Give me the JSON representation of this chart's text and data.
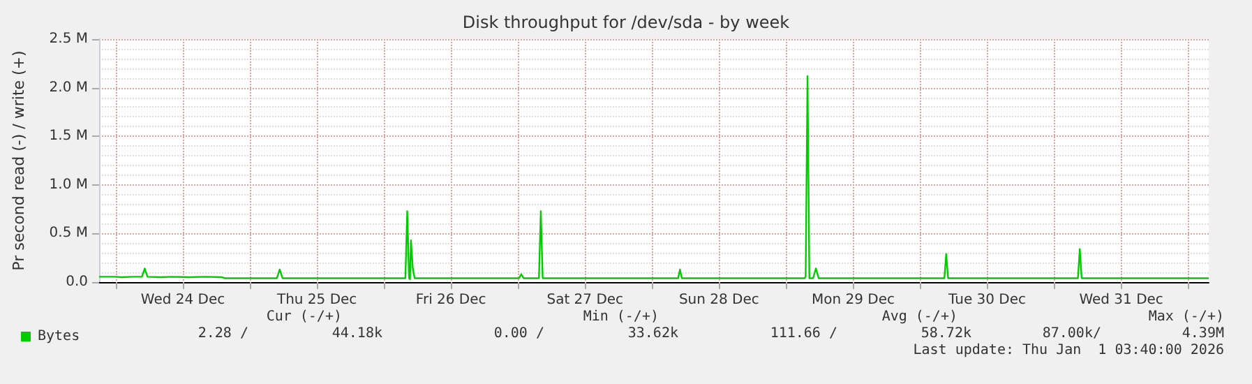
{
  "chart_data": {
    "type": "line",
    "title": "Disk throughput for /dev/sda - by week",
    "ylabel": "Pr second read (-) / write (+)",
    "x": [
      "2025-12-23T21:00",
      "2025-12-24T00:00",
      "2025-12-24T01:00",
      "2025-12-24T03:00",
      "2025-12-24T04:40",
      "2025-12-24T05:10",
      "2025-12-24T05:40",
      "2025-12-24T08:00",
      "2025-12-24T10:00",
      "2025-12-24T13:00",
      "2025-12-24T16:00",
      "2025-12-24T19:00",
      "2025-12-24T19:30",
      "2025-12-25T04:50",
      "2025-12-25T05:20",
      "2025-12-25T05:50",
      "2025-12-26T03:50",
      "2025-12-26T04:10",
      "2025-12-26T04:30",
      "2025-12-26T04:40",
      "2025-12-26T04:50",
      "2025-12-26T05:10",
      "2025-12-26T05:30",
      "2025-12-26T06:00",
      "2025-12-26T06:30",
      "2025-12-27T00:10",
      "2025-12-27T00:35",
      "2025-12-27T01:00",
      "2025-12-27T03:45",
      "2025-12-27T04:05",
      "2025-12-27T04:25",
      "2025-12-28T04:40",
      "2025-12-28T05:00",
      "2025-12-28T05:20",
      "2025-12-29T03:20",
      "2025-12-29T03:30",
      "2025-12-29T03:50",
      "2025-12-29T04:10",
      "2025-12-29T04:50",
      "2025-12-29T05:20",
      "2025-12-29T05:50",
      "2025-12-30T04:20",
      "2025-12-30T04:40",
      "2025-12-30T05:00",
      "2025-12-31T04:15",
      "2025-12-31T04:35",
      "2025-12-31T04:55",
      "2026-01-01T03:40"
    ],
    "series": [
      {
        "name": "Bytes",
        "color": "#00cc00",
        "values": [
          55000,
          55000,
          50000,
          55000,
          55000,
          140000,
          55000,
          50000,
          55000,
          50000,
          55000,
          50000,
          40000,
          40000,
          130000,
          40000,
          40000,
          730000,
          40000,
          30000,
          430000,
          140000,
          40000,
          40000,
          40000,
          40000,
          80000,
          40000,
          40000,
          730000,
          40000,
          40000,
          130000,
          40000,
          40000,
          60000,
          2120000,
          40000,
          40000,
          140000,
          40000,
          40000,
          290000,
          40000,
          40000,
          340000,
          40000,
          40000
        ]
      }
    ],
    "xlim": [
      "2025-12-23T21:00",
      "2026-01-01T03:40"
    ],
    "xticks": [
      {
        "value": "2025-12-24T00:00",
        "label": null
      },
      {
        "value": "2025-12-24T12:00",
        "label": "Wed 24 Dec"
      },
      {
        "value": "2025-12-25T00:00",
        "label": null
      },
      {
        "value": "2025-12-25T12:00",
        "label": "Thu 25 Dec"
      },
      {
        "value": "2025-12-26T00:00",
        "label": null
      },
      {
        "value": "2025-12-26T12:00",
        "label": "Fri 26 Dec"
      },
      {
        "value": "2025-12-27T00:00",
        "label": null
      },
      {
        "value": "2025-12-27T12:00",
        "label": "Sat 27 Dec"
      },
      {
        "value": "2025-12-28T00:00",
        "label": null
      },
      {
        "value": "2025-12-28T12:00",
        "label": "Sun 28 Dec"
      },
      {
        "value": "2025-12-29T00:00",
        "label": null
      },
      {
        "value": "2025-12-29T12:00",
        "label": "Mon 29 Dec"
      },
      {
        "value": "2025-12-30T00:00",
        "label": null
      },
      {
        "value": "2025-12-30T12:00",
        "label": "Tue 30 Dec"
      },
      {
        "value": "2025-12-31T00:00",
        "label": null
      },
      {
        "value": "2025-12-31T12:00",
        "label": "Wed 31 Dec"
      },
      {
        "value": "2026-01-01T00:00",
        "label": null
      }
    ],
    "ylim": [
      0,
      2500000
    ],
    "yticks": [
      {
        "value": 0,
        "label": "0.0"
      },
      {
        "value": 500000,
        "label": "0.5 M"
      },
      {
        "value": 1000000,
        "label": "1.0 M"
      },
      {
        "value": 1500000,
        "label": "1.5 M"
      },
      {
        "value": 2000000,
        "label": "2.0 M"
      },
      {
        "value": 2500000,
        "label": "2.5 M"
      }
    ],
    "grid": true,
    "legend": "bottom left",
    "marker": "none",
    "line_style": "solid",
    "annotations": [
      "Cur (-/+)",
      "Min (-/+)",
      "Avg (-/+)",
      "Max (-/+)",
      "2.28 /",
      "44.18k",
      "0.00 /",
      "33.62k",
      "111.66 /",
      "58.72k",
      "87.00k/",
      "4.39M",
      "Last update: Thu Jan  1 03:40:00 2026"
    ]
  }
}
